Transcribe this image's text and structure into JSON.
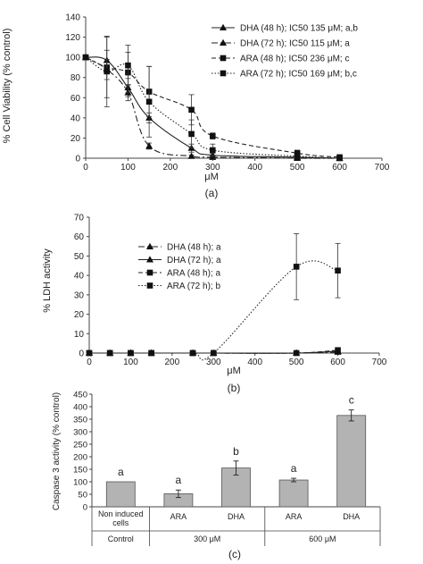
{
  "chart_data": [
    {
      "type": "line",
      "panel_label": "(a)",
      "ylabel": "% Cell Viability (% control)",
      "xlabel": "μM",
      "xlim": [
        0,
        700
      ],
      "ylim": [
        0,
        140
      ],
      "x_ticks": [
        "0",
        "100",
        "200",
        "300",
        "400",
        "500",
        "600",
        "700"
      ],
      "y_ticks": [
        "0",
        "20",
        "40",
        "60",
        "80",
        "100",
        "120",
        "140"
      ],
      "legend_position": "top-right",
      "grid": false,
      "series": [
        {
          "name": "DHA (48 h); IC50 135 μM; a,b",
          "marker": "triangle",
          "line": "solid",
          "x": [
            0,
            50,
            100,
            150,
            250,
            300,
            500,
            600
          ],
          "y": [
            100,
            97,
            70,
            40,
            10,
            3,
            1,
            0
          ],
          "err": [
            0,
            10,
            9,
            5,
            4,
            2,
            1,
            0
          ]
        },
        {
          "name": "DHA (72 h); IC50 115 μM; a",
          "marker": "triangle",
          "line": "dashdot",
          "x": [
            0,
            50,
            100,
            150,
            250,
            300,
            500,
            600
          ],
          "y": [
            100,
            88,
            65,
            12,
            2,
            1,
            0,
            0
          ],
          "err": [
            0,
            10,
            8,
            3,
            1,
            1,
            0,
            0
          ]
        },
        {
          "name": "ARA (48 h); IC50 236 μM; c",
          "marker": "square",
          "line": "dashed",
          "x": [
            0,
            50,
            100,
            150,
            250,
            300,
            500,
            600
          ],
          "y": [
            100,
            90,
            85,
            66,
            48,
            22,
            5,
            1
          ],
          "err": [
            0,
            30,
            20,
            25,
            15,
            3,
            3,
            1
          ]
        },
        {
          "name": "ARA (72 h); IC50 169 μM; b,c",
          "marker": "square",
          "line": "dotted",
          "x": [
            0,
            50,
            100,
            150,
            250,
            300,
            500,
            600
          ],
          "y": [
            100,
            86,
            92,
            56,
            24,
            8,
            2,
            0
          ],
          "err": [
            0,
            35,
            20,
            35,
            14,
            6,
            2,
            1
          ]
        }
      ]
    },
    {
      "type": "line",
      "panel_label": "(b)",
      "ylabel": "% LDH activity",
      "xlabel": "μM",
      "xlim": [
        0,
        700
      ],
      "ylim": [
        0,
        70
      ],
      "x_ticks": [
        "0",
        "100",
        "200",
        "300",
        "400",
        "500",
        "600",
        "700"
      ],
      "y_ticks": [
        "0",
        "10",
        "20",
        "30",
        "40",
        "50",
        "60",
        "70"
      ],
      "legend_position": "top-left",
      "grid": false,
      "series": [
        {
          "name": "DHA (48 h); a",
          "marker": "triangle",
          "line": "dashdot",
          "x": [
            0,
            50,
            100,
            150,
            250,
            300,
            500,
            600
          ],
          "y": [
            0,
            0,
            0,
            0,
            0,
            0,
            0,
            0.5
          ],
          "err": [
            0,
            0,
            0,
            0,
            0,
            0,
            0,
            0
          ]
        },
        {
          "name": "DHA (72 h); a",
          "marker": "triangle",
          "line": "solid",
          "x": [
            0,
            50,
            100,
            150,
            250,
            300,
            500,
            600
          ],
          "y": [
            0,
            0,
            0,
            0,
            0,
            0,
            0,
            1
          ],
          "err": [
            0,
            0,
            0,
            0,
            0,
            0,
            0,
            0
          ]
        },
        {
          "name": "ARA (48 h); a",
          "marker": "square",
          "line": "dashed",
          "x": [
            0,
            50,
            100,
            150,
            250,
            300,
            500,
            600
          ],
          "y": [
            0,
            0,
            0,
            0,
            0,
            0,
            0,
            1.5
          ],
          "err": [
            0,
            0,
            0,
            0,
            0,
            0,
            0,
            1
          ]
        },
        {
          "name": "ARA (72 h); b",
          "marker": "square",
          "line": "dotted",
          "x": [
            0,
            50,
            100,
            150,
            250,
            300,
            500,
            600
          ],
          "y": [
            0,
            0,
            0,
            0,
            0,
            0,
            44.5,
            42.5
          ],
          "err": [
            0,
            0,
            0,
            0,
            0,
            0,
            17,
            14
          ]
        }
      ]
    },
    {
      "type": "bar",
      "panel_label": "(c)",
      "ylabel": "Caspase 3 activity (% control)",
      "ylim": [
        0,
        450
      ],
      "y_ticks": [
        "0",
        "50",
        "100",
        "150",
        "200",
        "250",
        "300",
        "350",
        "400",
        "450"
      ],
      "categories": [
        "Non induced cells",
        "ARA",
        "DHA",
        "ARA",
        "DHA"
      ],
      "values": [
        100,
        52,
        155,
        107,
        365
      ],
      "errors": [
        0,
        15,
        28,
        7,
        22
      ],
      "letters": [
        "a",
        "a",
        "b",
        "a",
        "c"
      ],
      "groups": [
        {
          "label": "Control",
          "span": [
            0,
            0
          ]
        },
        {
          "label": "300 μM",
          "span": [
            1,
            2
          ]
        },
        {
          "label": "600 μM",
          "span": [
            3,
            4
          ]
        }
      ]
    }
  ]
}
